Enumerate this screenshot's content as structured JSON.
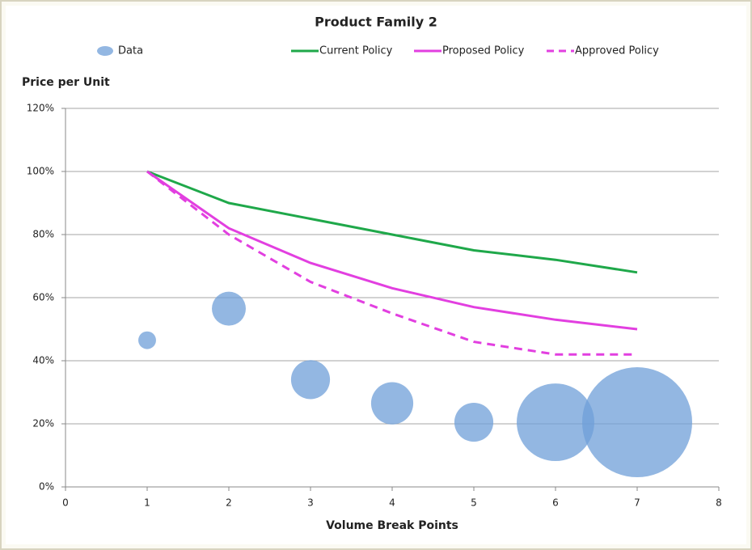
{
  "chart_data": {
    "type": "bubble",
    "title": "Product Family 2",
    "x_label": "Volume Break Points",
    "y_label": "Price per Unit",
    "xlim": [
      0,
      8
    ],
    "xticks": [
      0,
      1,
      2,
      3,
      4,
      5,
      6,
      7,
      8
    ],
    "ylim": [
      0,
      120
    ],
    "yticks": [
      {
        "value": 0,
        "label": "0%"
      },
      {
        "value": 20,
        "label": "20%"
      },
      {
        "value": 40,
        "label": "40%"
      },
      {
        "value": 60,
        "label": "60%"
      },
      {
        "value": 80,
        "label": "80%"
      },
      {
        "value": 100,
        "label": "100%"
      },
      {
        "value": 120,
        "label": "120%"
      }
    ],
    "grid": true,
    "legend": "top",
    "series": [
      {
        "name": "Data",
        "type": "bubble",
        "color": "#6f9fd8",
        "x": [
          1,
          2,
          3,
          4,
          5,
          6,
          7
        ],
        "values": [
          46.5,
          56.5,
          34,
          26.5,
          20.5,
          20.5,
          20.5
        ],
        "sizes": [
          12,
          44,
          58,
          68,
          58,
          230,
          462
        ]
      },
      {
        "name": "Current Policy",
        "type": "line",
        "color": "#1fa84a",
        "dashed": false,
        "x": [
          1,
          2,
          3,
          4,
          5,
          6,
          7
        ],
        "values": [
          100,
          90,
          85,
          80,
          75,
          72,
          68
        ]
      },
      {
        "name": "Proposed Policy",
        "type": "line",
        "color": "#e23fe0",
        "dashed": false,
        "x": [
          1,
          2,
          3,
          4,
          5,
          6,
          7
        ],
        "values": [
          100,
          82,
          71,
          63,
          57,
          53,
          50
        ]
      },
      {
        "name": "Approved Policy",
        "type": "line",
        "color": "#e23fe0",
        "dashed": true,
        "x": [
          1,
          2,
          3,
          4,
          5,
          6,
          7
        ],
        "values": [
          100,
          80,
          65,
          55,
          46,
          42,
          42
        ]
      }
    ]
  }
}
